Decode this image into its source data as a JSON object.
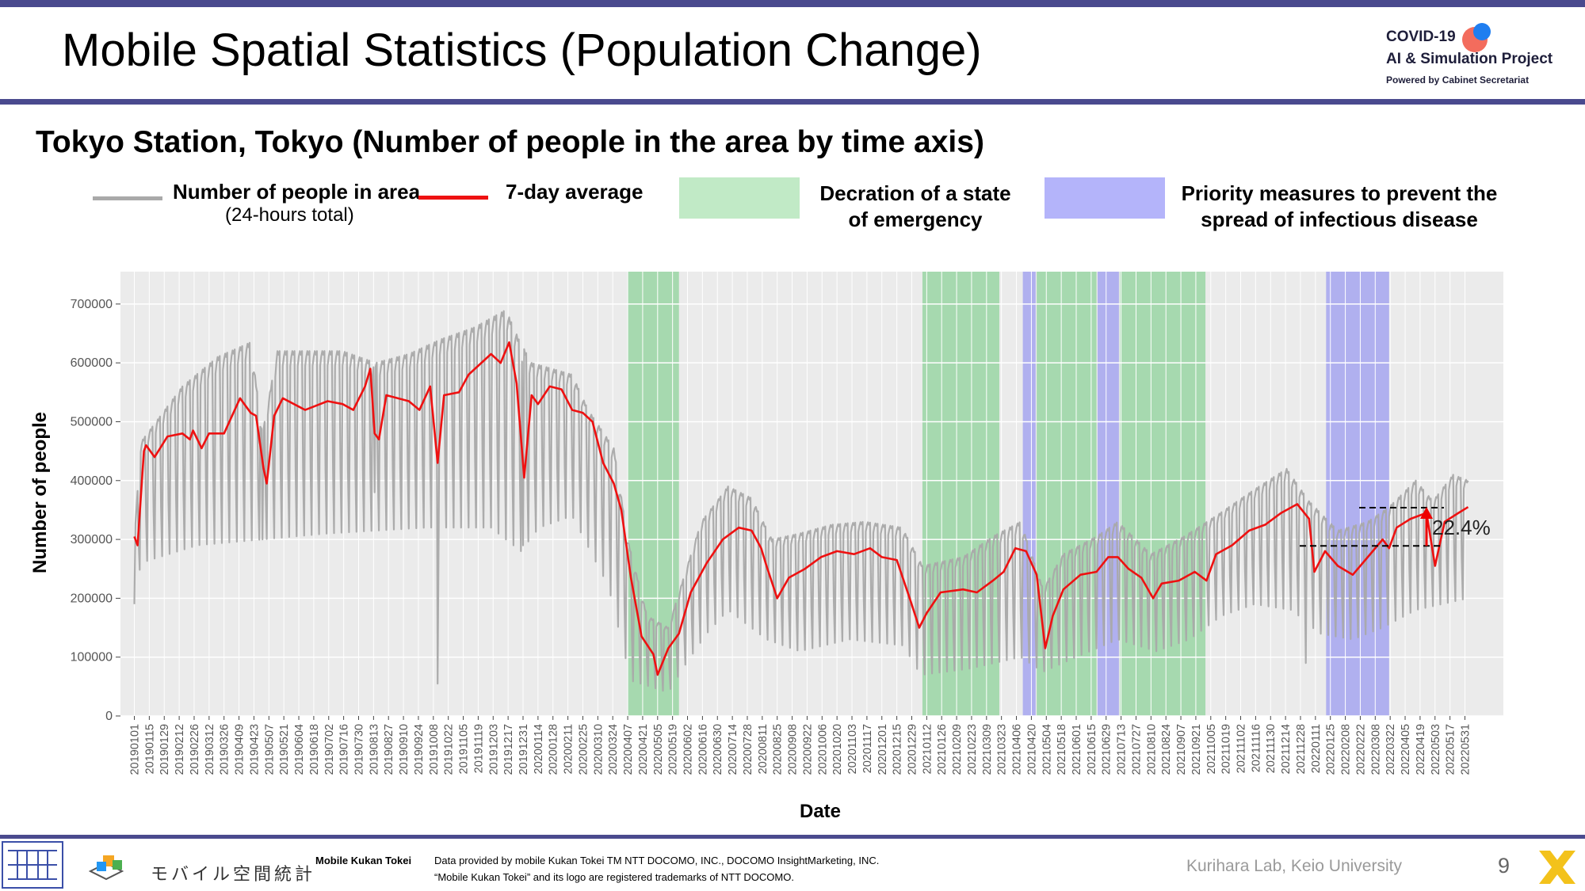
{
  "slide": {
    "title": "Mobile Spatial Statistics (Population Change)",
    "subtitle": "Tokyo Station, Tokyo (Number of people in the area by time axis)",
    "page_number": "9"
  },
  "logo": {
    "line1": "COVID-19",
    "line2": "AI & Simulation Project",
    "line3": "Powered by Cabinet Secretariat"
  },
  "legend": {
    "daily_label": "Number of people in area",
    "daily_sub": "(24-hours total)",
    "avg_label": "7-day average",
    "emergency_label_1": "Decration of a state",
    "emergency_label_2": "of emergency",
    "priority_label_1": "Priority measures to prevent the",
    "priority_label_2": "spread of infectious disease"
  },
  "footer": {
    "mobile_kukan_jp": "モバイル空間統計",
    "mobile_kukan_en": "Mobile Kukan Tokei",
    "credit_1": "Data provided by mobile Kukan Tokei TM NTT DOCOMO, INC., DOCOMO InsightMarketing, INC.",
    "credit_2": "“Mobile Kukan Tokei” and its logo are registered trademarks of NTT DOCOMO.",
    "lab": "Kurihara Lab, Keio University"
  },
  "colors": {
    "daily": "#a9a9a9",
    "average": "#ee1111",
    "emergency": "#8fd39b",
    "priority": "#9c9cf0",
    "plot_bg": "#ebebeb",
    "accent_bar": "#4a4a8e"
  },
  "chart_data": {
    "type": "line",
    "xlabel": "Date",
    "ylabel": "Number of people",
    "ylim": [
      0,
      755000
    ],
    "y_ticks": [
      0,
      100000,
      200000,
      300000,
      400000,
      500000,
      600000,
      700000
    ],
    "y_tick_labels": [
      "0",
      "100000",
      "200000",
      "300000",
      "400000",
      "500000",
      "600000",
      "700000"
    ],
    "x_range": [
      "2018-12-19",
      "2022-07-06"
    ],
    "x_tick_labels": [
      "20190101",
      "20190115",
      "20190129",
      "20190212",
      "20190226",
      "20190312",
      "20190326",
      "20190409",
      "20190423",
      "20190507",
      "20190521",
      "20190604",
      "20190618",
      "20190702",
      "20190716",
      "20190730",
      "20190813",
      "20190827",
      "20190910",
      "20190924",
      "20191008",
      "20191022",
      "20191105",
      "20191119",
      "20191203",
      "20191217",
      "20191231",
      "20200114",
      "20200128",
      "20200211",
      "20200225",
      "20200310",
      "20200324",
      "20200407",
      "20200421",
      "20200505",
      "20200519",
      "20200602",
      "20200616",
      "20200630",
      "20200714",
      "20200728",
      "20200811",
      "20200825",
      "20200908",
      "20200922",
      "20201006",
      "20201020",
      "20201103",
      "20201117",
      "20201201",
      "20201215",
      "20201229",
      "20210112",
      "20210126",
      "20210209",
      "20210223",
      "20210309",
      "20210323",
      "20210406",
      "20210420",
      "20210504",
      "20210518",
      "20210601",
      "20210615",
      "20210629",
      "20210713",
      "20210727",
      "20210810",
      "20210824",
      "20210907",
      "20210921",
      "20211005",
      "20211019",
      "20211102",
      "20211116",
      "20211130",
      "20211214",
      "20211228",
      "20220111",
      "20220125",
      "20220208",
      "20220222",
      "20220308",
      "20220322",
      "20220405",
      "20220419",
      "20220503",
      "20220517",
      "20220531"
    ],
    "legend_placement": "top",
    "grid": true,
    "periods": [
      {
        "type": "emergency",
        "start": "2020-04-07",
        "end": "2020-05-25"
      },
      {
        "type": "emergency",
        "start": "2021-01-08",
        "end": "2021-03-21"
      },
      {
        "type": "priority",
        "start": "2021-04-12",
        "end": "2021-04-24"
      },
      {
        "type": "emergency",
        "start": "2021-04-25",
        "end": "2021-06-20"
      },
      {
        "type": "priority",
        "start": "2021-06-21",
        "end": "2021-07-11"
      },
      {
        "type": "emergency",
        "start": "2021-07-12",
        "end": "2021-09-30"
      },
      {
        "type": "priority",
        "start": "2022-01-21",
        "end": "2022-03-21"
      }
    ],
    "series": [
      {
        "name": "Number of people in area",
        "sub": "(24-hours total)",
        "style": "daily weekly cycle",
        "weekday_high": [
          [
            "2019-01-01",
            300000
          ],
          [
            "2019-01-07",
            465000
          ],
          [
            "2019-02-15",
            560000
          ],
          [
            "2019-03-20",
            610000
          ],
          [
            "2019-04-20",
            635000
          ],
          [
            "2019-05-01",
            480000
          ],
          [
            "2019-05-15",
            620000
          ],
          [
            "2019-07-15",
            620000
          ],
          [
            "2019-08-15",
            600000
          ],
          [
            "2019-09-15",
            615000
          ],
          [
            "2019-10-15",
            640000
          ],
          [
            "2019-11-15",
            660000
          ],
          [
            "2019-12-15",
            690000
          ],
          [
            "2019-12-27",
            640000
          ],
          [
            "2020-01-08",
            600000
          ],
          [
            "2020-02-15",
            580000
          ],
          [
            "2020-03-01",
            520000
          ],
          [
            "2020-03-25",
            455000
          ],
          [
            "2020-04-07",
            300000
          ],
          [
            "2020-04-25",
            170000
          ],
          [
            "2020-05-15",
            150000
          ],
          [
            "2020-06-01",
            250000
          ],
          [
            "2020-06-15",
            330000
          ],
          [
            "2020-07-10",
            390000
          ],
          [
            "2020-08-01",
            370000
          ],
          [
            "2020-08-20",
            300000
          ],
          [
            "2020-09-15",
            310000
          ],
          [
            "2020-10-15",
            325000
          ],
          [
            "2020-11-15",
            330000
          ],
          [
            "2020-12-20",
            320000
          ],
          [
            "2021-01-08",
            255000
          ],
          [
            "2021-02-15",
            270000
          ],
          [
            "2021-03-15",
            305000
          ],
          [
            "2021-04-10",
            330000
          ],
          [
            "2021-05-01",
            215000
          ],
          [
            "2021-05-20",
            275000
          ],
          [
            "2021-06-20",
            305000
          ],
          [
            "2021-07-10",
            330000
          ],
          [
            "2021-08-10",
            275000
          ],
          [
            "2021-09-10",
            305000
          ],
          [
            "2021-10-10",
            340000
          ],
          [
            "2021-11-15",
            385000
          ],
          [
            "2021-12-15",
            420000
          ],
          [
            "2022-01-05",
            365000
          ],
          [
            "2022-02-01",
            315000
          ],
          [
            "2022-03-01",
            330000
          ],
          [
            "2022-03-21",
            355000
          ],
          [
            "2022-04-15",
            400000
          ],
          [
            "2022-05-01",
            365000
          ],
          [
            "2022-05-20",
            410000
          ],
          [
            "2022-06-03",
            400000
          ]
        ],
        "weekend_low": [
          [
            "2019-01-01",
            190000
          ],
          [
            "2019-01-07",
            260000
          ],
          [
            "2019-03-01",
            290000
          ],
          [
            "2019-05-01",
            300000
          ],
          [
            "2019-07-01",
            310000
          ],
          [
            "2019-10-01",
            320000
          ],
          [
            "2019-12-01",
            320000
          ],
          [
            "2019-12-29",
            280000
          ],
          [
            "2020-01-15",
            320000
          ],
          [
            "2020-02-15",
            340000
          ],
          [
            "2020-03-20",
            220000
          ],
          [
            "2020-04-10",
            60000
          ],
          [
            "2020-05-15",
            40000
          ],
          [
            "2020-06-01",
            90000
          ],
          [
            "2020-06-20",
            140000
          ],
          [
            "2020-07-10",
            180000
          ],
          [
            "2020-08-15",
            130000
          ],
          [
            "2020-09-15",
            110000
          ],
          [
            "2020-11-01",
            130000
          ],
          [
            "2020-12-20",
            120000
          ],
          [
            "2021-01-08",
            70000
          ],
          [
            "2021-02-20",
            80000
          ],
          [
            "2021-04-10",
            100000
          ],
          [
            "2021-05-01",
            75000
          ],
          [
            "2021-06-01",
            100000
          ],
          [
            "2021-07-10",
            130000
          ],
          [
            "2021-08-15",
            110000
          ],
          [
            "2021-09-15",
            130000
          ],
          [
            "2021-10-15",
            170000
          ],
          [
            "2021-11-15",
            190000
          ],
          [
            "2021-12-20",
            180000
          ],
          [
            "2022-01-15",
            140000
          ],
          [
            "2022-02-15",
            130000
          ],
          [
            "2022-03-15",
            150000
          ],
          [
            "2022-04-15",
            180000
          ],
          [
            "2022-06-03",
            200000
          ]
        ],
        "spikes": [
          [
            "2019-01-01",
            190000
          ],
          [
            "2019-10-12",
            55000
          ],
          [
            "2019-12-31",
            290000
          ],
          [
            "2021-01-03",
            80000
          ],
          [
            "2022-01-02",
            90000
          ],
          [
            "2019-05-01",
            300000
          ],
          [
            "2019-08-14",
            380000
          ]
        ]
      },
      {
        "name": "7-day average",
        "values": [
          [
            "2019-01-01",
            305000
          ],
          [
            "2019-01-04",
            290000
          ],
          [
            "2019-01-10",
            450000
          ],
          [
            "2019-01-12",
            460000
          ],
          [
            "2019-01-20",
            440000
          ],
          [
            "2019-02-01",
            475000
          ],
          [
            "2019-02-15",
            480000
          ],
          [
            "2019-02-22",
            470000
          ],
          [
            "2019-02-25",
            485000
          ],
          [
            "2019-03-05",
            455000
          ],
          [
            "2019-03-12",
            480000
          ],
          [
            "2019-03-26",
            480000
          ],
          [
            "2019-04-10",
            540000
          ],
          [
            "2019-04-20",
            515000
          ],
          [
            "2019-04-25",
            510000
          ],
          [
            "2019-05-02",
            420000
          ],
          [
            "2019-05-05",
            395000
          ],
          [
            "2019-05-12",
            510000
          ],
          [
            "2019-05-20",
            540000
          ],
          [
            "2019-06-10",
            520000
          ],
          [
            "2019-07-01",
            535000
          ],
          [
            "2019-07-15",
            530000
          ],
          [
            "2019-07-25",
            520000
          ],
          [
            "2019-08-05",
            560000
          ],
          [
            "2019-08-10",
            590000
          ],
          [
            "2019-08-14",
            480000
          ],
          [
            "2019-08-18",
            470000
          ],
          [
            "2019-08-25",
            545000
          ],
          [
            "2019-09-15",
            535000
          ],
          [
            "2019-09-25",
            520000
          ],
          [
            "2019-10-05",
            560000
          ],
          [
            "2019-10-12",
            430000
          ],
          [
            "2019-10-18",
            545000
          ],
          [
            "2019-11-01",
            550000
          ],
          [
            "2019-11-10",
            580000
          ],
          [
            "2019-12-01",
            615000
          ],
          [
            "2019-12-10",
            600000
          ],
          [
            "2019-12-18",
            635000
          ],
          [
            "2019-12-25",
            565000
          ],
          [
            "2020-01-01",
            405000
          ],
          [
            "2020-01-08",
            545000
          ],
          [
            "2020-01-14",
            530000
          ],
          [
            "2020-01-25",
            560000
          ],
          [
            "2020-02-05",
            555000
          ],
          [
            "2020-02-15",
            520000
          ],
          [
            "2020-02-25",
            515000
          ],
          [
            "2020-03-05",
            500000
          ],
          [
            "2020-03-15",
            430000
          ],
          [
            "2020-03-25",
            395000
          ],
          [
            "2020-04-01",
            350000
          ],
          [
            "2020-04-10",
            235000
          ],
          [
            "2020-04-20",
            135000
          ],
          [
            "2020-05-01",
            105000
          ],
          [
            "2020-05-05",
            70000
          ],
          [
            "2020-05-15",
            115000
          ],
          [
            "2020-05-25",
            140000
          ],
          [
            "2020-06-05",
            210000
          ],
          [
            "2020-06-20",
            260000
          ],
          [
            "2020-07-05",
            300000
          ],
          [
            "2020-07-20",
            320000
          ],
          [
            "2020-08-01",
            315000
          ],
          [
            "2020-08-10",
            285000
          ],
          [
            "2020-08-15",
            255000
          ],
          [
            "2020-08-25",
            200000
          ],
          [
            "2020-09-05",
            235000
          ],
          [
            "2020-09-20",
            250000
          ],
          [
            "2020-10-05",
            270000
          ],
          [
            "2020-10-20",
            280000
          ],
          [
            "2020-11-05",
            275000
          ],
          [
            "2020-11-20",
            285000
          ],
          [
            "2020-12-01",
            270000
          ],
          [
            "2020-12-15",
            265000
          ],
          [
            "2020-12-28",
            195000
          ],
          [
            "2021-01-05",
            150000
          ],
          [
            "2021-01-12",
            175000
          ],
          [
            "2021-01-25",
            210000
          ],
          [
            "2021-02-15",
            215000
          ],
          [
            "2021-02-28",
            210000
          ],
          [
            "2021-03-15",
            230000
          ],
          [
            "2021-03-25",
            245000
          ],
          [
            "2021-04-05",
            285000
          ],
          [
            "2021-04-15",
            280000
          ],
          [
            "2021-04-25",
            240000
          ],
          [
            "2021-05-03",
            115000
          ],
          [
            "2021-05-10",
            170000
          ],
          [
            "2021-05-20",
            215000
          ],
          [
            "2021-06-05",
            240000
          ],
          [
            "2021-06-20",
            245000
          ],
          [
            "2021-07-01",
            270000
          ],
          [
            "2021-07-10",
            270000
          ],
          [
            "2021-07-20",
            250000
          ],
          [
            "2021-08-01",
            235000
          ],
          [
            "2021-08-12",
            200000
          ],
          [
            "2021-08-20",
            225000
          ],
          [
            "2021-09-05",
            230000
          ],
          [
            "2021-09-20",
            245000
          ],
          [
            "2021-10-01",
            230000
          ],
          [
            "2021-10-10",
            275000
          ],
          [
            "2021-10-25",
            290000
          ],
          [
            "2021-11-10",
            315000
          ],
          [
            "2021-11-25",
            325000
          ],
          [
            "2021-12-10",
            345000
          ],
          [
            "2021-12-25",
            360000
          ],
          [
            "2022-01-05",
            335000
          ],
          [
            "2022-01-10",
            245000
          ],
          [
            "2022-01-20",
            280000
          ],
          [
            "2022-02-01",
            255000
          ],
          [
            "2022-02-15",
            240000
          ],
          [
            "2022-03-01",
            270000
          ],
          [
            "2022-03-15",
            300000
          ],
          [
            "2022-03-21",
            285000
          ],
          [
            "2022-03-28",
            320000
          ],
          [
            "2022-04-10",
            335000
          ],
          [
            "2022-04-25",
            345000
          ],
          [
            "2022-05-03",
            255000
          ],
          [
            "2022-05-12",
            330000
          ],
          [
            "2022-05-25",
            345000
          ],
          [
            "2022-06-03",
            355000
          ]
        ]
      }
    ],
    "annotation": {
      "text": "22.4%",
      "from_value": 289000,
      "to_value": 354000
    }
  }
}
